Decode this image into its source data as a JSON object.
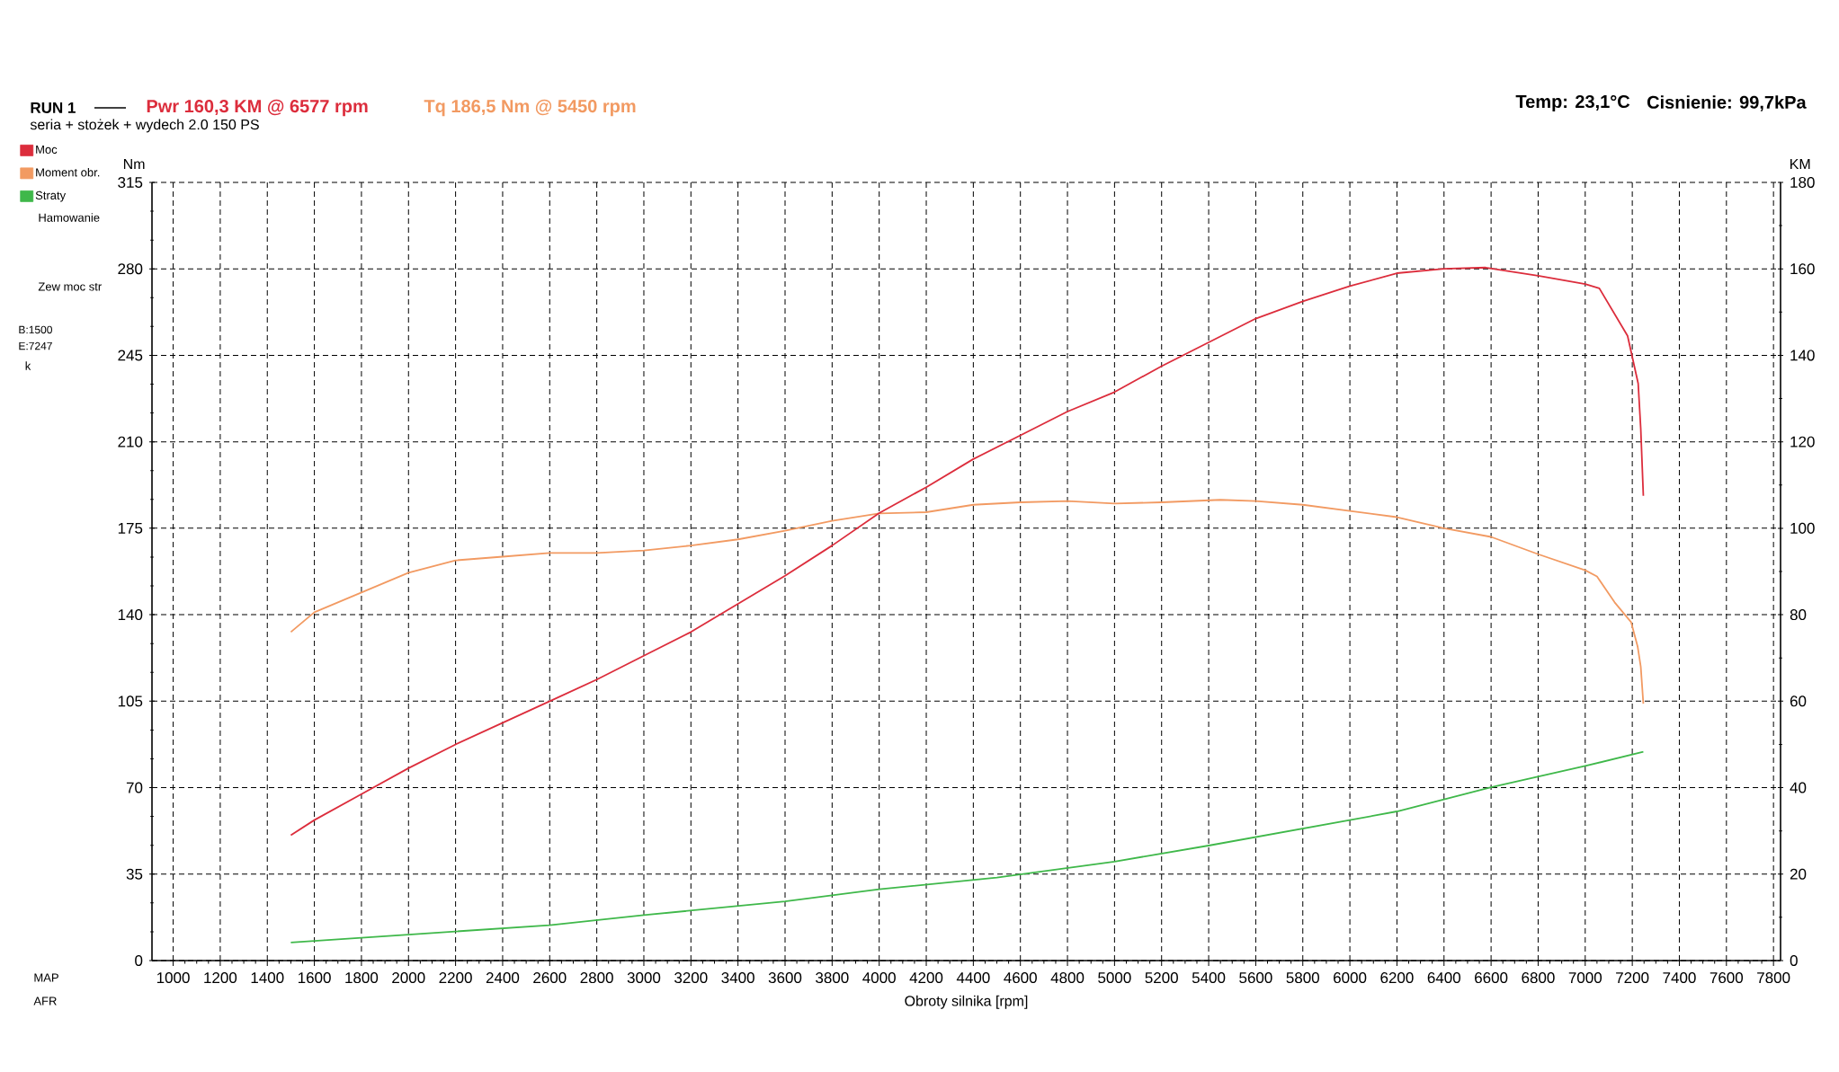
{
  "chart_data": {
    "type": "line",
    "title": "RUN 1",
    "subtitle": "seria + stożek + wydech 2.0 150 PS",
    "xlabel": "Obroty silnika [rpm]",
    "ylabel": "Nm",
    "y2label": "KM",
    "series": [
      {
        "name": "Moc",
        "color": "#dc2d3c",
        "axis": "y2",
        "x": [
          1500,
          1600,
          1800,
          2000,
          2200,
          2400,
          2600,
          2800,
          3000,
          3200,
          3400,
          3600,
          3800,
          4000,
          4200,
          4400,
          4600,
          4800,
          5000,
          5200,
          5400,
          5600,
          5800,
          6000,
          6200,
          6400,
          6577,
          6800,
          7000,
          7060,
          7180,
          7225,
          7236,
          7247
        ],
        "values": [
          29,
          32.5,
          38.5,
          44.5,
          50,
          55,
          60,
          65,
          70.5,
          76,
          82.5,
          89,
          96,
          103.5,
          109.5,
          116,
          121.5,
          127,
          131.5,
          137.5,
          143,
          148.5,
          152.5,
          156,
          159,
          160,
          160.3,
          158.4,
          156.5,
          155.5,
          144.5,
          133.5,
          123,
          107.5
        ]
      },
      {
        "name": "Moment obr.",
        "color": "#f29a62",
        "x": [
          1500,
          1600,
          1800,
          2000,
          2200,
          2400,
          2600,
          2800,
          3000,
          3200,
          3400,
          3600,
          3800,
          4000,
          4200,
          4400,
          4600,
          4800,
          5000,
          5200,
          5450,
          5600,
          5800,
          6000,
          6200,
          6400,
          6600,
          6800,
          7000,
          7050,
          7125,
          7195,
          7223,
          7236,
          7247
        ],
        "values": [
          133,
          141,
          149,
          157,
          162,
          163.5,
          165,
          165,
          166,
          168,
          170.5,
          174,
          178,
          181,
          181.5,
          184.5,
          185.5,
          186,
          185,
          185.5,
          186.5,
          186,
          184.5,
          182,
          179.5,
          175,
          171.5,
          164.5,
          158,
          155.5,
          145,
          137,
          127,
          119,
          104
        ]
      },
      {
        "name": "Straty",
        "color": "#3fb84a",
        "axis": "y2",
        "x": [
          1500,
          2000,
          2600,
          3000,
          3600,
          4000,
          4500,
          5000,
          5400,
          6000,
          6200,
          6600,
          7000,
          7247
        ],
        "values": [
          4.2,
          6,
          8.2,
          10.5,
          13.7,
          16.5,
          19.2,
          22.9,
          26.6,
          32.5,
          34.5,
          40.1,
          45,
          48.3
        ]
      }
    ],
    "xlim": [
      910,
      7830
    ],
    "xticks": [
      1000,
      1200,
      1400,
      1600,
      1800,
      2000,
      2200,
      2400,
      2600,
      2800,
      3000,
      3200,
      3400,
      3600,
      3800,
      4000,
      4200,
      4400,
      4600,
      4800,
      5000,
      5200,
      5400,
      5600,
      5800,
      6000,
      6200,
      6400,
      6600,
      6800,
      7000,
      7200,
      7400,
      7600,
      7800
    ],
    "ylim": [
      0,
      315
    ],
    "yticks": [
      0,
      35,
      70,
      105,
      140,
      175,
      210,
      245,
      280,
      315
    ],
    "y2lim": [
      0,
      180
    ],
    "y2ticks": [
      0,
      20,
      40,
      60,
      80,
      100,
      120,
      140,
      160,
      180
    ],
    "grid": true,
    "legend": "left",
    "marker": "none",
    "line_style": "solid",
    "annotations": [
      "Pwr 160,3 KM @ 6577 rpm",
      "Tq 186,5 Nm @ 5450 rpm",
      "Temp: 23,1°C",
      "Cisnienie: 99,7kPa",
      "Hamowanie",
      "Zew moc str",
      "B:1500",
      "E:7247",
      "k",
      "MAP",
      "AFR"
    ]
  }
}
